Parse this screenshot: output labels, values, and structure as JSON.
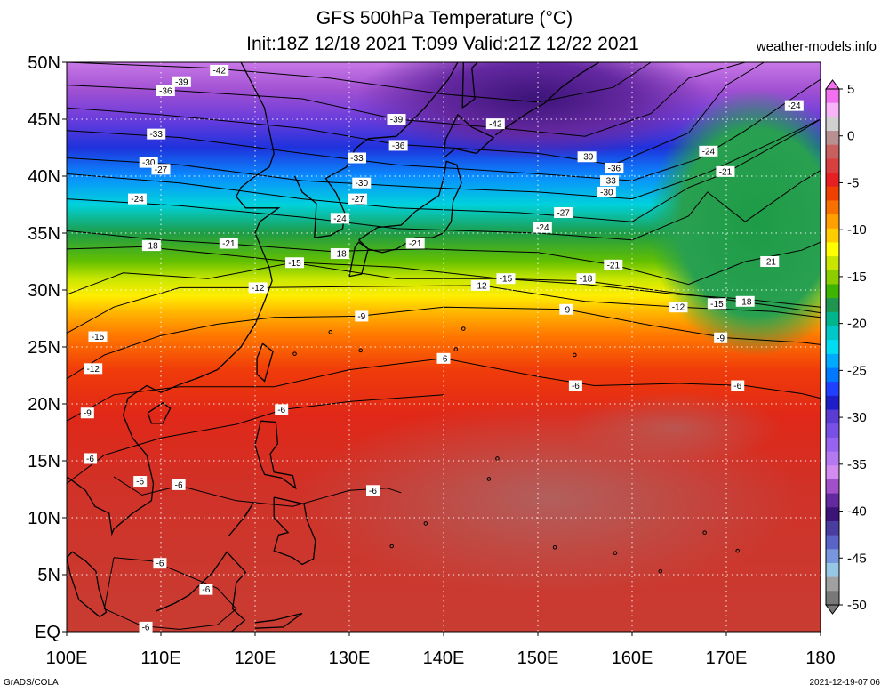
{
  "title": {
    "line1": "GFS 500hPa Temperature (°C)",
    "line2": "Init:18Z 12/18 2021 T:099 Valid:21Z 12/22 2021"
  },
  "source": "weather-models.info",
  "footer": {
    "left": "GrADS/COLA",
    "right": "2021-12-19-07:06"
  },
  "map": {
    "lon_range": [
      100,
      180
    ],
    "lat_range": [
      0,
      50
    ],
    "x_ticks": [
      "100E",
      "110E",
      "120E",
      "130E",
      "140E",
      "150E",
      "160E",
      "170E",
      "180"
    ],
    "y_ticks": [
      "EQ",
      "5N",
      "10N",
      "15N",
      "20N",
      "25N",
      "30N",
      "35N",
      "40N",
      "45N",
      "50N"
    ]
  },
  "colorbar": {
    "tick_labels": [
      "5",
      "0",
      "-5",
      "-10",
      "-15",
      "-20",
      "-25",
      "-30",
      "-35",
      "-40",
      "-45",
      "-50"
    ],
    "colors": [
      "#f070f0",
      "#f8b4f8",
      "#d0d0d0",
      "#b89090",
      "#c86060",
      "#d84040",
      "#e62020",
      "#f04000",
      "#f87000",
      "#ffa000",
      "#ffcc00",
      "#ffff00",
      "#c8e600",
      "#8ccd00",
      "#3cb400",
      "#1e9650",
      "#00b48c",
      "#00c8c8",
      "#00dcf0",
      "#00aaff",
      "#0078ff",
      "#2040ff",
      "#1e1ec8",
      "#5a3cd2",
      "#7850e6",
      "#9664f0",
      "#b478f0",
      "#d28cf0",
      "#a050c8",
      "#6428a0",
      "#3c1478",
      "#4b3ca0",
      "#5a64c8",
      "#7896dc",
      "#96c8e6",
      "#a0a0a0",
      "#787878"
    ]
  },
  "contour_labels": [
    {
      "text": "-42",
      "lon": 116.2,
      "lat": 49.3
    },
    {
      "text": "-39",
      "lon": 112.2,
      "lat": 48.3
    },
    {
      "text": "-36",
      "lon": 110.5,
      "lat": 47.5
    },
    {
      "text": "-33",
      "lon": 109.5,
      "lat": 43.7
    },
    {
      "text": "-30",
      "lon": 108.7,
      "lat": 41.2
    },
    {
      "text": "-27",
      "lon": 110.0,
      "lat": 40.6
    },
    {
      "text": "-24",
      "lon": 107.5,
      "lat": 38.0
    },
    {
      "text": "-18",
      "lon": 109.0,
      "lat": 33.9
    },
    {
      "text": "-21",
      "lon": 117.2,
      "lat": 34.1
    },
    {
      "text": "-39",
      "lon": 135.0,
      "lat": 45.0
    },
    {
      "text": "-42",
      "lon": 145.5,
      "lat": 44.6
    },
    {
      "text": "-36",
      "lon": 135.2,
      "lat": 42.7
    },
    {
      "text": "-33",
      "lon": 130.8,
      "lat": 41.6
    },
    {
      "text": "-30",
      "lon": 131.3,
      "lat": 39.4
    },
    {
      "text": "-27",
      "lon": 130.9,
      "lat": 38.0
    },
    {
      "text": "-24",
      "lon": 129.0,
      "lat": 36.3
    },
    {
      "text": "-18",
      "lon": 129.0,
      "lat": 33.2
    },
    {
      "text": "-21",
      "lon": 137.0,
      "lat": 34.1
    },
    {
      "text": "-15",
      "lon": 124.2,
      "lat": 32.4
    },
    {
      "text": "-12",
      "lon": 120.3,
      "lat": 30.2
    },
    {
      "text": "-39",
      "lon": 155.2,
      "lat": 41.7
    },
    {
      "text": "-36",
      "lon": 158.1,
      "lat": 40.7
    },
    {
      "text": "-33",
      "lon": 157.6,
      "lat": 39.6
    },
    {
      "text": "-30",
      "lon": 157.3,
      "lat": 38.6
    },
    {
      "text": "-27",
      "lon": 152.7,
      "lat": 36.8
    },
    {
      "text": "-24",
      "lon": 150.5,
      "lat": 35.5
    },
    {
      "text": "-24",
      "lon": 168.1,
      "lat": 42.2
    },
    {
      "text": "-21",
      "lon": 169.9,
      "lat": 40.4
    },
    {
      "text": "-21",
      "lon": 158.0,
      "lat": 32.2
    },
    {
      "text": "-18",
      "lon": 155.1,
      "lat": 31.0
    },
    {
      "text": "-15",
      "lon": 146.6,
      "lat": 31.0
    },
    {
      "text": "-12",
      "lon": 143.9,
      "lat": 30.4
    },
    {
      "text": "-21",
      "lon": 174.6,
      "lat": 32.5
    },
    {
      "text": "-24",
      "lon": 177.2,
      "lat": 46.2
    },
    {
      "text": "-18",
      "lon": 172.0,
      "lat": 29.0
    },
    {
      "text": "-15",
      "lon": 169.0,
      "lat": 28.8
    },
    {
      "text": "-12",
      "lon": 164.9,
      "lat": 28.5
    },
    {
      "text": "-9",
      "lon": 153.0,
      "lat": 28.3
    },
    {
      "text": "-9",
      "lon": 131.3,
      "lat": 27.7
    },
    {
      "text": "-9",
      "lon": 169.4,
      "lat": 25.8
    },
    {
      "text": "-6",
      "lon": 140.0,
      "lat": 24.0
    },
    {
      "text": "-6",
      "lon": 154.0,
      "lat": 21.6
    },
    {
      "text": "-6",
      "lon": 171.2,
      "lat": 21.6
    },
    {
      "text": "-6",
      "lon": 122.8,
      "lat": 19.5
    },
    {
      "text": "-15",
      "lon": 103.3,
      "lat": 25.9
    },
    {
      "text": "-12",
      "lon": 102.8,
      "lat": 23.1
    },
    {
      "text": "-9",
      "lon": 102.2,
      "lat": 19.2
    },
    {
      "text": "-6",
      "lon": 102.5,
      "lat": 15.2
    },
    {
      "text": "-6",
      "lon": 107.8,
      "lat": 13.2
    },
    {
      "text": "-6",
      "lon": 111.9,
      "lat": 12.9
    },
    {
      "text": "-6",
      "lon": 132.5,
      "lat": 12.4
    },
    {
      "text": "-6",
      "lon": 109.9,
      "lat": 6.0
    },
    {
      "text": "-6",
      "lon": 114.8,
      "lat": 3.7
    },
    {
      "text": "-6",
      "lon": 108.4,
      "lat": 0.4
    }
  ]
}
